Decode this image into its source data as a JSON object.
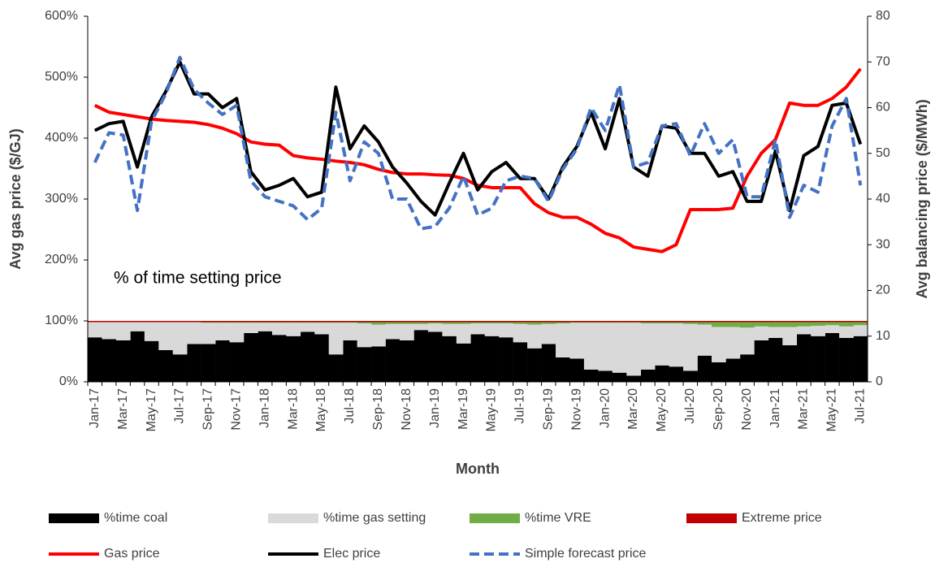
{
  "chart_data": {
    "type": "combo",
    "annotation": "% of time setting price",
    "x_label": "Month",
    "y_label": "Avg gas price ($/GJ)",
    "y2_label": "Avg balancing price ($/MWh)",
    "stacked": true,
    "categories": [
      "Jan-17",
      null,
      "Mar-17",
      null,
      "May-17",
      null,
      "Jul-17",
      null,
      "Sep-17",
      null,
      "Nov-17",
      null,
      "Jan-18",
      null,
      "Mar-18",
      null,
      "May-18",
      null,
      "Jul-18",
      null,
      "Sep-18",
      null,
      "Nov-18",
      null,
      "Jan-19",
      null,
      "Mar-19",
      null,
      "May-19",
      null,
      "Jul-19",
      null,
      "Sep-19",
      null,
      "Nov-19",
      null,
      "Jan-20",
      null,
      "Mar-20",
      null,
      "May-20",
      null,
      "Jul-20",
      null,
      "Sep-20",
      null,
      "Nov-20",
      null,
      "Jan-21",
      null,
      "Mar-21",
      null,
      "May-21",
      null,
      "Jul-21"
    ],
    "ylim": [
      0,
      600
    ],
    "yticks": [
      {
        "value": 0,
        "label": "0%"
      },
      {
        "value": 100,
        "label": "100%"
      },
      {
        "value": 200,
        "label": "200%"
      },
      {
        "value": 300,
        "label": "300%"
      },
      {
        "value": 400,
        "label": "400%"
      },
      {
        "value": 500,
        "label": "500%"
      },
      {
        "value": 600,
        "label": "600%"
      }
    ],
    "y2lim": [
      0,
      80
    ],
    "y2ticks": [
      0,
      10,
      20,
      30,
      40,
      50,
      60,
      70,
      80
    ],
    "series": [
      {
        "name": "%time coal",
        "type": "bar",
        "color": "#000000",
        "values": [
          73,
          70,
          68,
          83,
          67,
          52,
          45,
          62,
          62,
          68,
          65,
          80,
          83,
          77,
          75,
          82,
          78,
          45,
          68,
          57,
          58,
          70,
          68,
          85,
          82,
          75,
          63,
          78,
          75,
          73,
          65,
          55,
          62,
          40,
          38,
          20,
          18,
          15,
          10,
          20,
          27,
          25,
          18,
          43,
          32,
          38,
          45,
          68,
          72,
          60,
          78,
          75,
          80,
          72,
          75
        ]
      },
      {
        "name": "%time gas setting",
        "type": "bar",
        "color": "#d9d9d9",
        "values": [
          25,
          28,
          30,
          15,
          31,
          46,
          53,
          36,
          35,
          29,
          32,
          17,
          14,
          20,
          22,
          15,
          19,
          52,
          29,
          39,
          36,
          25,
          27,
          10,
          14,
          20,
          32,
          18,
          21,
          23,
          30,
          39,
          33,
          56,
          59,
          77,
          79,
          82,
          87,
          76,
          69,
          71,
          77,
          51,
          58,
          52,
          44,
          23,
          18,
          30,
          13,
          17,
          13,
          19,
          18
        ]
      },
      {
        "name": "%time VRE",
        "type": "bar",
        "color": "#70ad47",
        "values": [
          0,
          0,
          0,
          0,
          0,
          0,
          0,
          0,
          1,
          1,
          1,
          1,
          1,
          1,
          1,
          1,
          1,
          1,
          1,
          2,
          4,
          3,
          3,
          3,
          2,
          3,
          3,
          2,
          2,
          2,
          3,
          4,
          3,
          2,
          1,
          1,
          1,
          1,
          1,
          2,
          2,
          2,
          3,
          4,
          8,
          8,
          9,
          7,
          8,
          8,
          7,
          6,
          5,
          7,
          5
        ]
      },
      {
        "name": "Extreme price",
        "type": "bar",
        "color": "#c00000",
        "values": [
          2,
          2,
          2,
          2,
          2,
          2,
          2,
          2,
          2,
          2,
          2,
          2,
          2,
          2,
          2,
          2,
          2,
          2,
          2,
          2,
          2,
          2,
          2,
          2,
          2,
          2,
          2,
          2,
          2,
          2,
          2,
          2,
          2,
          2,
          2,
          2,
          2,
          2,
          2,
          2,
          2,
          2,
          2,
          2,
          2,
          2,
          2,
          2,
          2,
          2,
          2,
          2,
          2,
          2,
          2
        ]
      },
      {
        "name": "Gas price",
        "type": "line",
        "axis": "y2",
        "color": "#ff0000",
        "linestyle": "solid",
        "values": [
          60.5,
          59,
          58.5,
          58,
          57.5,
          57.2,
          57,
          56.8,
          56.3,
          55.5,
          54.3,
          52.5,
          52,
          51.8,
          49.5,
          49,
          48.7,
          48.3,
          48,
          47.5,
          46.5,
          45.8,
          45.5,
          45.5,
          45.3,
          45.2,
          44.5,
          43,
          42.5,
          42.5,
          42.5,
          39,
          37,
          36,
          36,
          34.5,
          32.5,
          31.5,
          29.5,
          29,
          28.5,
          30,
          37.7,
          37.7,
          37.7,
          38,
          45,
          50,
          53,
          61,
          60.5,
          60.5,
          62,
          64.5,
          68.5
        ]
      },
      {
        "name": "Elec price",
        "type": "line",
        "axis": "y2",
        "color": "#000000",
        "linestyle": "solid",
        "values": [
          55,
          56.5,
          57,
          47,
          58,
          63.5,
          70,
          63,
          63,
          60,
          62,
          46,
          42,
          43,
          44.5,
          40.5,
          41.5,
          64.5,
          51,
          56,
          52.5,
          47,
          43.5,
          39.5,
          36.5,
          43.5,
          50,
          42,
          46,
          48,
          44.5,
          44.5,
          40,
          47,
          51.5,
          59,
          51,
          62,
          47,
          45,
          56,
          55.5,
          50,
          50,
          45,
          46,
          39.5,
          39.5,
          50.5,
          37.5,
          49.5,
          51.5,
          60.5,
          61,
          52
        ]
      },
      {
        "name": "Simple forecast price",
        "type": "line",
        "axis": "y2",
        "color": "#4472c4",
        "linestyle": "dashed",
        "values": [
          48,
          54.5,
          54,
          37.5,
          57,
          63,
          71,
          64,
          61,
          58.5,
          60.5,
          44,
          40.5,
          39.5,
          38.5,
          35.5,
          38,
          59,
          44,
          52.5,
          50,
          40,
          40,
          33.5,
          34,
          38,
          45,
          36.5,
          38,
          44,
          45,
          44.5,
          39.5,
          46.5,
          51,
          60,
          55,
          65,
          47,
          48,
          56,
          56.5,
          49.5,
          56.5,
          50,
          53,
          40.5,
          40.5,
          53,
          36,
          43,
          41.5,
          56,
          62,
          43
        ]
      }
    ]
  }
}
